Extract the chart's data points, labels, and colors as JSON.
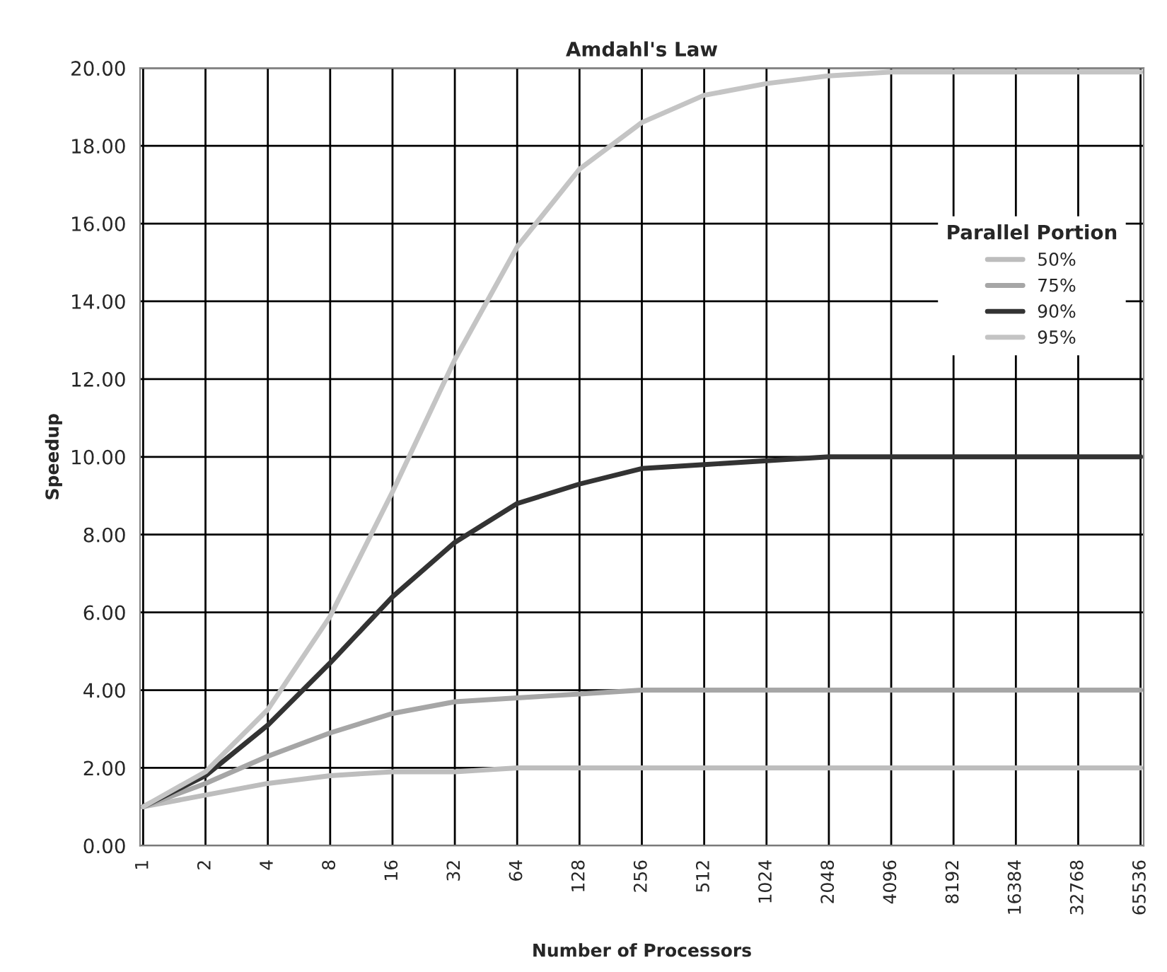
{
  "chart_data": {
    "type": "line",
    "title": "Amdahl's Law",
    "xlabel": "Number of Processors",
    "ylabel": "Speedup",
    "legend_title": "Parallel Portion",
    "categories": [
      "1",
      "2",
      "4",
      "8",
      "16",
      "32",
      "64",
      "128",
      "256",
      "512",
      "1024",
      "2048",
      "4096",
      "8192",
      "16384",
      "32768",
      "65536"
    ],
    "series": [
      {
        "name": "50%",
        "color": "#bdbdbd",
        "values": [
          1.0,
          1.3,
          1.6,
          1.8,
          1.9,
          1.9,
          2.0,
          2.0,
          2.0,
          2.0,
          2.0,
          2.0,
          2.0,
          2.0,
          2.0,
          2.0,
          2.0
        ]
      },
      {
        "name": "75%",
        "color": "#a6a6a6",
        "values": [
          1.0,
          1.6,
          2.3,
          2.9,
          3.4,
          3.7,
          3.8,
          3.9,
          4.0,
          4.0,
          4.0,
          4.0,
          4.0,
          4.0,
          4.0,
          4.0,
          4.0
        ]
      },
      {
        "name": "90%",
        "color": "#333333",
        "values": [
          1.0,
          1.8,
          3.1,
          4.7,
          6.4,
          7.8,
          8.8,
          9.3,
          9.7,
          9.8,
          9.9,
          10.0,
          10.0,
          10.0,
          10.0,
          10.0,
          10.0
        ]
      },
      {
        "name": "95%",
        "color": "#c4c4c4",
        "values": [
          1.0,
          1.9,
          3.5,
          5.9,
          9.1,
          12.5,
          15.4,
          17.4,
          18.6,
          19.3,
          19.6,
          19.8,
          19.9,
          19.9,
          19.9,
          19.9,
          19.9
        ]
      }
    ],
    "ylim": [
      0,
      20
    ],
    "yticks": [
      {
        "value": 0,
        "label": "0.00"
      },
      {
        "value": 2,
        "label": "2.00"
      },
      {
        "value": 4,
        "label": "4.00"
      },
      {
        "value": 6,
        "label": "6.00"
      },
      {
        "value": 8,
        "label": "8.00"
      },
      {
        "value": 10,
        "label": "10.00"
      },
      {
        "value": 12,
        "label": "12.00"
      },
      {
        "value": 14,
        "label": "14.00"
      },
      {
        "value": 16,
        "label": "16.00"
      },
      {
        "value": 18,
        "label": "18.00"
      },
      {
        "value": 20,
        "label": "20.00"
      }
    ],
    "grid": true,
    "legend": "right",
    "marker": "none",
    "line_style": "solid"
  }
}
